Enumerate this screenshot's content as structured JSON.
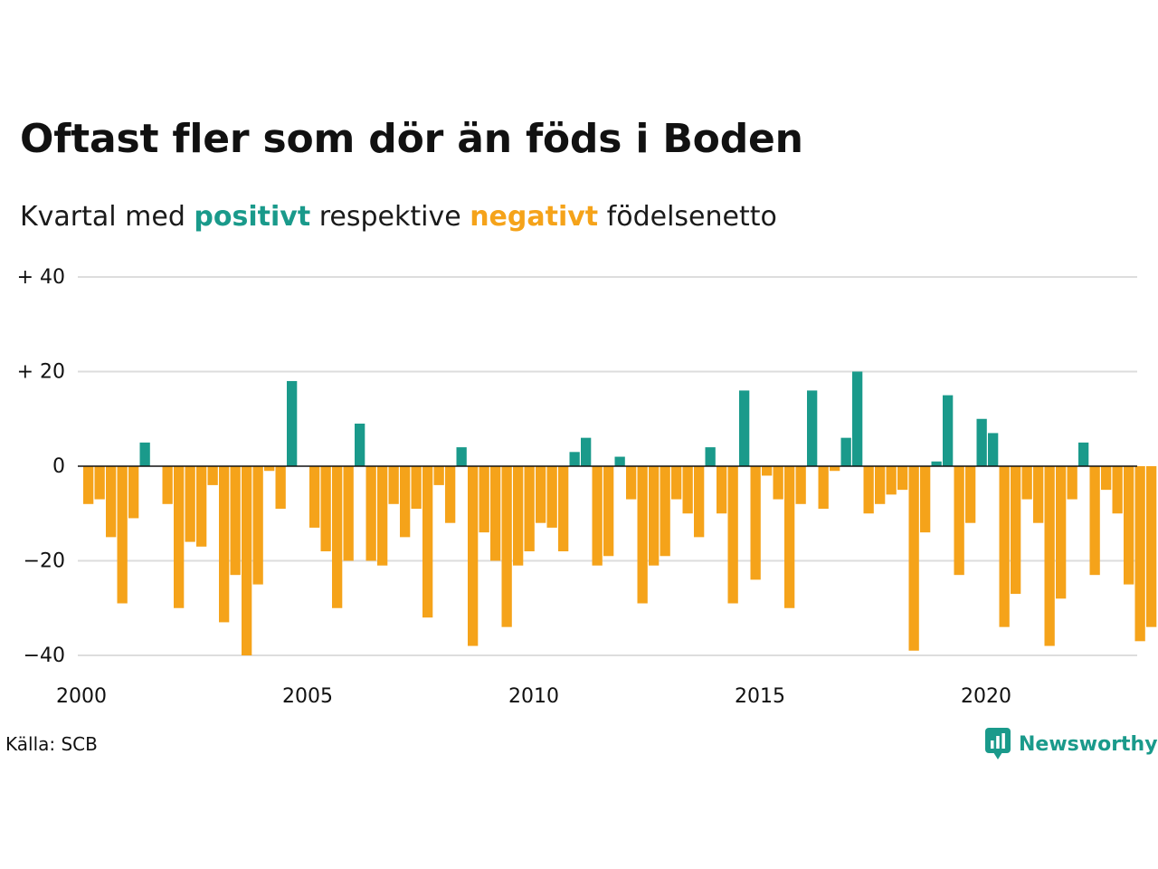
{
  "title": "Oftast fler som dör än föds i Boden",
  "subtitle": {
    "prefix": "Kvartal med ",
    "positive_word": "positivt",
    "middle": " respektive ",
    "negative_word": "negativt",
    "suffix": " födelsenetto"
  },
  "source": "Källa: SCB",
  "brand": "Newsworthy",
  "colors": {
    "positive": "#1a9a8b",
    "negative": "#f5a31a",
    "grid": "#dddddd",
    "zero_line": "#111111",
    "text": "#111111"
  },
  "chart_data": {
    "type": "bar",
    "xlabel": "",
    "ylabel": "",
    "ylim": [
      -40,
      40
    ],
    "grid": true,
    "y_ticks": [
      {
        "value": 40,
        "label": "+ 40"
      },
      {
        "value": 20,
        "label": "+ 20"
      },
      {
        "value": 0,
        "label": "0"
      },
      {
        "value": -20,
        "label": "−20"
      },
      {
        "value": -40,
        "label": "−40"
      }
    ],
    "x_ticks": [
      {
        "value": 2000,
        "label": "2000"
      },
      {
        "value": 2005,
        "label": "2005"
      },
      {
        "value": 2010,
        "label": "2010"
      },
      {
        "value": 2015,
        "label": "2015"
      },
      {
        "value": 2020,
        "label": "2020"
      }
    ],
    "categories": [
      "2000 K1",
      "2000 K2",
      "2000 K3",
      "2000 K4",
      "2001 K1",
      "2001 K2",
      "2001 K3",
      "2001 K4",
      "2002 K1",
      "2002 K2",
      "2002 K3",
      "2002 K4",
      "2003 K1",
      "2003 K2",
      "2003 K3",
      "2003 K4",
      "2004 K1",
      "2004 K2",
      "2004 K3",
      "2004 K4",
      "2005 K1",
      "2005 K2",
      "2005 K3",
      "2005 K4",
      "2006 K1",
      "2006 K2",
      "2006 K3",
      "2006 K4",
      "2007 K1",
      "2007 K2",
      "2007 K3",
      "2007 K4",
      "2008 K1",
      "2008 K2",
      "2008 K3",
      "2008 K4",
      "2009 K1",
      "2009 K2",
      "2009 K3",
      "2009 K4",
      "2010 K1",
      "2010 K2",
      "2010 K3",
      "2010 K4",
      "2011 K1",
      "2011 K2",
      "2011 K3",
      "2011 K4",
      "2012 K1",
      "2012 K2",
      "2012 K3",
      "2012 K4",
      "2013 K1",
      "2013 K2",
      "2013 K3",
      "2013 K4",
      "2014 K1",
      "2014 K2",
      "2014 K3",
      "2014 K4",
      "2015 K1",
      "2015 K2",
      "2015 K3",
      "2015 K4",
      "2016 K1",
      "2016 K2",
      "2016 K3",
      "2016 K4",
      "2017 K1",
      "2017 K2",
      "2017 K3",
      "2017 K4",
      "2018 K1",
      "2018 K2",
      "2018 K3",
      "2018 K4",
      "2019 K1",
      "2019 K2",
      "2019 K3",
      "2019 K4",
      "2020 K1",
      "2020 K2",
      "2020 K3",
      "2020 K4",
      "2021 K1",
      "2021 K2",
      "2021 K3",
      "2021 K4",
      "2022 K1",
      "2022 K2",
      "2022 K3",
      "2022 K4",
      "2023 K1",
      "2023 K2",
      "2023 K3"
    ],
    "values": [
      -8,
      -7,
      -15,
      -29,
      -11,
      5,
      0,
      -8,
      -30,
      -16,
      -17,
      -4,
      -33,
      -23,
      -40,
      -25,
      -1,
      -9,
      18,
      0,
      -13,
      -18,
      -30,
      -20,
      9,
      -20,
      -21,
      -8,
      -15,
      -9,
      -32,
      -4,
      -12,
      4,
      -38,
      -14,
      -20,
      -34,
      -21,
      -18,
      -12,
      -13,
      -18,
      3,
      6,
      -21,
      -19,
      2,
      -7,
      -29,
      -21,
      -19,
      -7,
      -10,
      -15,
      4,
      -10,
      -29,
      16,
      -24,
      -2,
      -7,
      -30,
      -8,
      16,
      -9,
      -1,
      6,
      20,
      -10,
      -8,
      -6,
      -5,
      -39,
      -14,
      1,
      15,
      -23,
      -12,
      10,
      7,
      -34,
      -27,
      -7,
      -12,
      -38,
      -28,
      -7,
      5,
      -23,
      -5,
      -10,
      -25,
      -37,
      -34
    ]
  }
}
